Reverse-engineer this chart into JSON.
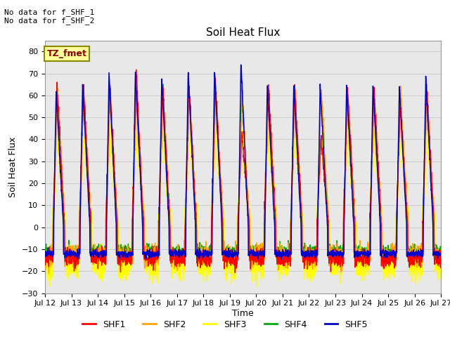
{
  "title": "Soil Heat Flux",
  "ylabel": "Soil Heat Flux",
  "xlabel": "Time",
  "ylim": [
    -30,
    85
  ],
  "yticks": [
    -30,
    -20,
    -10,
    0,
    10,
    20,
    30,
    40,
    50,
    60,
    70,
    80
  ],
  "annotation_text": "No data for f_SHF_1\nNo data for f_SHF_2",
  "legend_box_text": "TZ_fmet",
  "legend_box_color": "#FFFF99",
  "legend_box_border": "#8B8B00",
  "legend_box_text_color": "#8B0000",
  "series_colors": {
    "SHF1": "#FF0000",
    "SHF2": "#FFA500",
    "SHF3": "#FFFF00",
    "SHF4": "#00AA00",
    "SHF5": "#0000CC"
  },
  "n_days": 15,
  "start_day": 12,
  "points_per_day": 144,
  "background_color": "#FFFFFF",
  "grid_color": "#CCCCCC"
}
